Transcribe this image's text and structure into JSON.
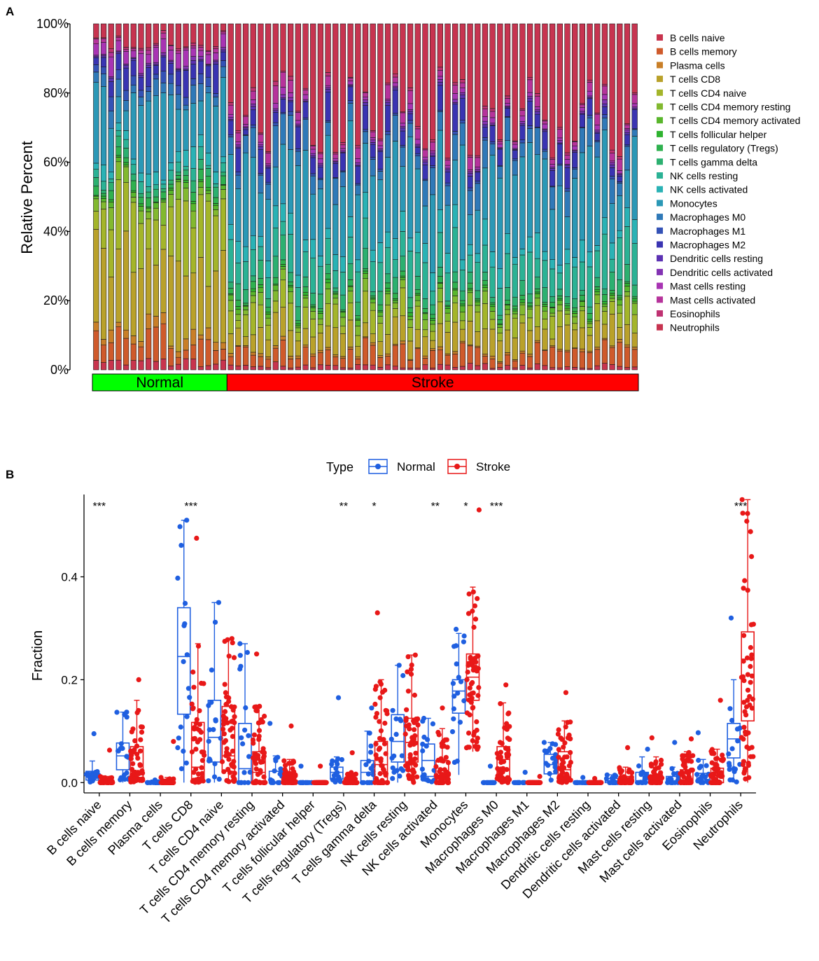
{
  "panels": {
    "a_label": "A",
    "b_label": "B"
  },
  "chart_data": [
    {
      "type": "bar",
      "stacked": true,
      "ylabel": "Relative Percent",
      "ylim": [
        0,
        1
      ],
      "yticks": [
        "0%",
        "20%",
        "40%",
        "60%",
        "80%",
        "100%"
      ],
      "n_samples": {
        "normal": 18,
        "stroke": 55
      },
      "groups": [
        {
          "name": "Normal",
          "color": "#00ff00"
        },
        {
          "name": "Stroke",
          "color": "#ff0000"
        }
      ],
      "legend_position": "right",
      "series": [
        {
          "name": "B cells naive",
          "color": "#c8344e"
        },
        {
          "name": "B cells memory",
          "color": "#cf5a2b"
        },
        {
          "name": "Plasma cells",
          "color": "#c97f28"
        },
        {
          "name": "T cells CD8",
          "color": "#b9a12a"
        },
        {
          "name": "T cells CD4 naive",
          "color": "#a4b52a"
        },
        {
          "name": "T cells CD4 memory resting",
          "color": "#82b92f"
        },
        {
          "name": "T cells CD4 memory activated",
          "color": "#59b62c"
        },
        {
          "name": "T cells follicular helper",
          "color": "#2fb330"
        },
        {
          "name": "T cells regulatory (Tregs)",
          "color": "#2fb14f"
        },
        {
          "name": "T cells gamma delta",
          "color": "#2cb070"
        },
        {
          "name": "NK cells resting",
          "color": "#2bb295"
        },
        {
          "name": "NK cells activated",
          "color": "#2ab2b5"
        },
        {
          "name": "Monocytes",
          "color": "#2b98b6"
        },
        {
          "name": "Macrophages M0",
          "color": "#2f79b8"
        },
        {
          "name": "Macrophages M1",
          "color": "#3452b6"
        },
        {
          "name": "Macrophages M2",
          "color": "#3a34b2"
        },
        {
          "name": "Dendritic cells resting",
          "color": "#5c32b3"
        },
        {
          "name": "Dendritic cells activated",
          "color": "#8333b3"
        },
        {
          "name": "Mast cells resting",
          "color": "#a834b3"
        },
        {
          "name": "Mast cells activated",
          "color": "#b6339b"
        },
        {
          "name": "Eosinophils",
          "color": "#bf3272"
        },
        {
          "name": "Neutrophils",
          "color": "#c73450"
        }
      ]
    },
    {
      "type": "box",
      "ylabel": "Fraction",
      "ylim": [
        -0.02,
        0.56
      ],
      "yticks": [
        0.0,
        0.2,
        0.4
      ],
      "ytick_labels": [
        "0.0",
        "0.2",
        "0.4"
      ],
      "legend": {
        "title": "Type",
        "position": "top",
        "entries": [
          {
            "name": "Normal",
            "color": "#1f5fe0"
          },
          {
            "name": "Stroke",
            "color": "#e81818"
          }
        ]
      },
      "categories": [
        {
          "name": "B cells naive",
          "sig": "***",
          "normal": [
            0.0,
            0.005,
            0.011,
            0.022,
            0.042
          ],
          "normal_max": 0.095,
          "stroke": [
            0.0,
            0.0,
            0.0,
            0.005,
            0.012
          ],
          "stroke_max": 0.063
        },
        {
          "name": "B cells memory",
          "sig": "",
          "normal": [
            0.0,
            0.025,
            0.052,
            0.077,
            0.137
          ],
          "normal_max": 0.137,
          "stroke": [
            0.0,
            0.01,
            0.022,
            0.07,
            0.16
          ],
          "stroke_max": 0.2
        },
        {
          "name": "Plasma cells",
          "sig": "",
          "normal": [
            0.0,
            0.0,
            0.0,
            0.0,
            0.005
          ],
          "normal_max": 0.005,
          "stroke": [
            0.0,
            0.0,
            0.0,
            0.0,
            0.01
          ],
          "stroke_max": 0.08
        },
        {
          "name": "T cells CD8",
          "sig": "***",
          "normal": [
            0.0,
            0.133,
            0.245,
            0.34,
            0.51
          ],
          "normal_max": 0.51,
          "stroke": [
            0.0,
            0.007,
            0.03,
            0.117,
            0.27
          ],
          "stroke_max": 0.475
        },
        {
          "name": "T cells CD4 naive",
          "sig": "",
          "normal": [
            0.0,
            0.04,
            0.088,
            0.16,
            0.35
          ],
          "normal_max": 0.35,
          "stroke": [
            0.0,
            0.022,
            0.052,
            0.148,
            0.28
          ],
          "stroke_max": 0.28
        },
        {
          "name": "T cells CD4 memory resting",
          "sig": "",
          "normal": [
            0.0,
            0.0,
            0.027,
            0.115,
            0.27
          ],
          "normal_max": 0.27,
          "stroke": [
            0.0,
            0.0,
            0.02,
            0.06,
            0.15
          ],
          "stroke_max": 0.25
        },
        {
          "name": "T cells CD4 memory activated",
          "sig": "",
          "normal": [
            0.0,
            0.0,
            0.0,
            0.022,
            0.052
          ],
          "normal_max": 0.115,
          "stroke": [
            0.0,
            0.0,
            0.0,
            0.018,
            0.045
          ],
          "stroke_max": 0.11
        },
        {
          "name": "T cells follicular helper",
          "sig": "",
          "normal": [
            0.0,
            0.0,
            0.0,
            0.0,
            0.0
          ],
          "normal_max": 0.032,
          "stroke": [
            0.0,
            0.0,
            0.0,
            0.0,
            0.0
          ],
          "stroke_max": 0.032
        },
        {
          "name": "T cells regulatory (Tregs)",
          "sig": "**",
          "normal": [
            0.0,
            0.007,
            0.02,
            0.03,
            0.05
          ],
          "normal_max": 0.165,
          "stroke": [
            0.0,
            0.0,
            0.0,
            0.008,
            0.02
          ],
          "stroke_max": 0.058
        },
        {
          "name": "T cells gamma delta",
          "sig": "*",
          "normal": [
            0.0,
            0.0,
            0.02,
            0.043,
            0.1
          ],
          "normal_max": 0.145,
          "stroke": [
            0.0,
            0.0,
            0.035,
            0.08,
            0.2
          ],
          "stroke_max": 0.33
        },
        {
          "name": "NK cells resting",
          "sig": "",
          "normal": [
            0.0,
            0.04,
            0.08,
            0.132,
            0.228
          ],
          "normal_max": 0.228,
          "stroke": [
            0.0,
            0.04,
            0.078,
            0.125,
            0.248
          ],
          "stroke_max": 0.248
        },
        {
          "name": "NK cells activated",
          "sig": "**",
          "normal": [
            0.0,
            0.012,
            0.043,
            0.075,
            0.125
          ],
          "normal_max": 0.125,
          "stroke": [
            0.0,
            0.0,
            0.014,
            0.043,
            0.105
          ],
          "stroke_max": 0.145
        },
        {
          "name": "Monocytes",
          "sig": "*",
          "normal": [
            0.015,
            0.135,
            0.178,
            0.2,
            0.29
          ],
          "normal_max": 0.298,
          "stroke": [
            0.06,
            0.16,
            0.205,
            0.25,
            0.38
          ],
          "stroke_max": 0.53
        },
        {
          "name": "Macrophages M0",
          "sig": "***",
          "normal": [
            0.0,
            0.0,
            0.0,
            0.0,
            0.0
          ],
          "normal_max": 0.032,
          "stroke": [
            0.0,
            0.01,
            0.045,
            0.07,
            0.155
          ],
          "stroke_max": 0.19
        },
        {
          "name": "Macrophages M1",
          "sig": "",
          "normal": [
            0.0,
            0.0,
            0.0,
            0.0,
            0.0
          ],
          "normal_max": 0.02,
          "stroke": [
            0.0,
            0.0,
            0.0,
            0.0,
            0.0
          ],
          "stroke_max": 0.012
        },
        {
          "name": "Macrophages M2",
          "sig": "",
          "normal": [
            0.0,
            0.017,
            0.035,
            0.055,
            0.078
          ],
          "normal_max": 0.078,
          "stroke": [
            0.0,
            0.01,
            0.025,
            0.06,
            0.12
          ],
          "stroke_max": 0.175
        },
        {
          "name": "Dendritic cells resting",
          "sig": "",
          "normal": [
            0.0,
            0.0,
            0.0,
            0.0,
            0.0
          ],
          "normal_max": 0.01,
          "stroke": [
            0.0,
            0.0,
            0.0,
            0.0,
            0.0
          ],
          "stroke_max": 0.008
        },
        {
          "name": "Dendritic cells activated",
          "sig": "",
          "normal": [
            0.0,
            0.0,
            0.003,
            0.008,
            0.015
          ],
          "normal_max": 0.015,
          "stroke": [
            0.0,
            0.0,
            0.0,
            0.012,
            0.03
          ],
          "stroke_max": 0.068
        },
        {
          "name": "Mast cells resting",
          "sig": "",
          "normal": [
            0.0,
            0.0,
            0.0,
            0.02,
            0.05
          ],
          "normal_max": 0.065,
          "stroke": [
            0.0,
            0.0,
            0.0,
            0.015,
            0.05
          ],
          "stroke_max": 0.087
        },
        {
          "name": "Mast cells activated",
          "sig": "",
          "normal": [
            0.0,
            0.0,
            0.0,
            0.012,
            0.03
          ],
          "normal_max": 0.078,
          "stroke": [
            0.0,
            0.0,
            0.0,
            0.025,
            0.06
          ],
          "stroke_max": 0.085
        },
        {
          "name": "Eosinophils",
          "sig": "",
          "normal": [
            0.0,
            0.0,
            0.006,
            0.018,
            0.045
          ],
          "normal_max": 0.097,
          "stroke": [
            0.0,
            0.0,
            0.0,
            0.028,
            0.065
          ],
          "stroke_max": 0.16
        },
        {
          "name": "Neutrophils",
          "sig": "***",
          "normal": [
            0.0,
            0.048,
            0.085,
            0.115,
            0.2
          ],
          "normal_max": 0.32,
          "stroke": [
            0.0,
            0.12,
            0.24,
            0.293,
            0.55
          ],
          "stroke_max": 0.55
        }
      ]
    }
  ]
}
